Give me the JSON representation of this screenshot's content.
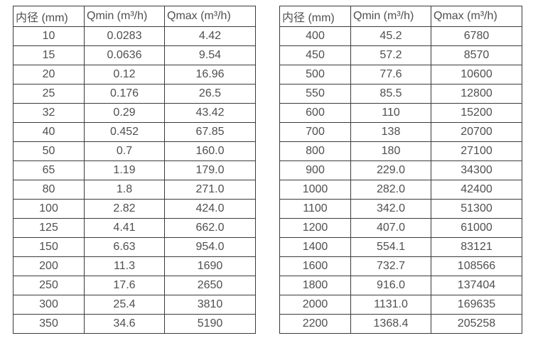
{
  "page": {
    "background_color": "#ffffff",
    "text_color": "#4f4f4f",
    "border_color": "#3a3a3a"
  },
  "tables": [
    {
      "id": "small-diameters",
      "headers": [
        "内径 (mm)",
        "Qmin (m³/h)",
        "Qmax (m³/h)"
      ],
      "rows": [
        [
          "10",
          "0.0283",
          "4.42"
        ],
        [
          "15",
          "0.0636",
          "9.54"
        ],
        [
          "20",
          "0.12",
          "16.96"
        ],
        [
          "25",
          "0.176",
          "26.5"
        ],
        [
          "32",
          "0.29",
          "43.42"
        ],
        [
          "40",
          "0.452",
          "67.85"
        ],
        [
          "50",
          "0.7",
          "160.0"
        ],
        [
          "65",
          "1.19",
          "179.0"
        ],
        [
          "80",
          "1.8",
          "271.0"
        ],
        [
          "100",
          "2.82",
          "424.0"
        ],
        [
          "125",
          "4.41",
          "662.0"
        ],
        [
          "150",
          "6.63",
          "954.0"
        ],
        [
          "200",
          "11.3",
          "1690"
        ],
        [
          "250",
          "17.6",
          "2650"
        ],
        [
          "300",
          "25.4",
          "3810"
        ],
        [
          "350",
          "34.6",
          "5190"
        ]
      ]
    },
    {
      "id": "large-diameters",
      "headers": [
        "内径 (mm)",
        "Qmin (m³/h)",
        "Qmax (m³/h)"
      ],
      "rows": [
        [
          "400",
          "45.2",
          "6780"
        ],
        [
          "450",
          "57.2",
          "8570"
        ],
        [
          "500",
          "77.6",
          "10600"
        ],
        [
          "550",
          "85.5",
          "12800"
        ],
        [
          "600",
          "110",
          "15200"
        ],
        [
          "700",
          "138",
          "20700"
        ],
        [
          "800",
          "180",
          "27100"
        ],
        [
          "900",
          "229.0",
          "34300"
        ],
        [
          "1000",
          "282.0",
          "42400"
        ],
        [
          "1100",
          "342.0",
          "51300"
        ],
        [
          "1200",
          "407.0",
          "61000"
        ],
        [
          "1400",
          "554.1",
          "83121"
        ],
        [
          "1600",
          "732.7",
          "108566"
        ],
        [
          "1800",
          "916.0",
          "137404"
        ],
        [
          "2000",
          "1131.0",
          "169635"
        ],
        [
          "2200",
          "1368.4",
          "205258"
        ]
      ]
    }
  ]
}
